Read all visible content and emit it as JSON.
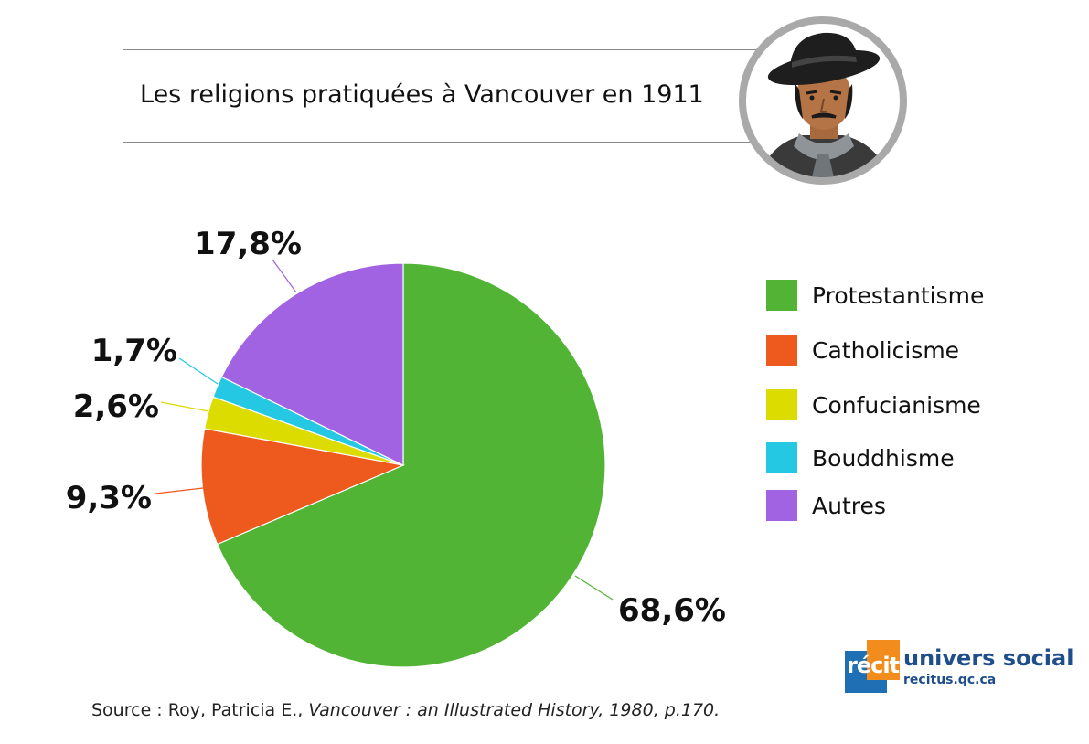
{
  "header": {
    "title": "Les religions pratiquées à Vancouver en 1911"
  },
  "chart_data": {
    "type": "pie",
    "title": "Les religions pratiquées à Vancouver en 1911",
    "categories": [
      "Protestantisme",
      "Catholicisme",
      "Confucianisme",
      "Bouddhisme",
      "Autres"
    ],
    "values": [
      68.6,
      9.3,
      2.6,
      1.7,
      17.8
    ],
    "value_labels": [
      "68,6%",
      "9,3%",
      "2,6%",
      "1,7%",
      "17,8%"
    ],
    "colors": [
      "#52b435",
      "#ee5a1e",
      "#dcdc00",
      "#25c8e3",
      "#a263e3"
    ],
    "legend_position": "right",
    "start": "12 o'clock, clockwise"
  },
  "legend": {
    "items": [
      {
        "label": "Protestantisme",
        "color": "#52b435"
      },
      {
        "label": "Catholicisme",
        "color": "#ee5a1e"
      },
      {
        "label": "Confucianisme",
        "color": "#dcdc00"
      },
      {
        "label": "Bouddhisme",
        "color": "#25c8e3"
      },
      {
        "label": "Autres",
        "color": "#a263e3"
      }
    ]
  },
  "source": {
    "prefix": "Source : Roy, Patricia E., ",
    "italic": "Vancouver : an Illustrated History, 1980, p.170."
  },
  "logo": {
    "badge": "récit",
    "title": "univers social",
    "subtitle": "recitus.qc.ca"
  },
  "icons": {
    "avatar": "character-portrait-icon"
  }
}
